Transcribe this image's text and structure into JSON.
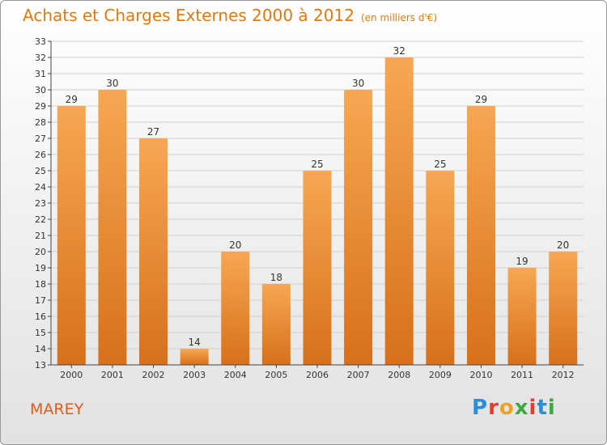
{
  "title": "Achats et Charges Externes 2000 à 2012",
  "subtitle": "(en milliers d'€)",
  "commune": "MAREY",
  "logo": {
    "text": "Proxiti",
    "colors": [
      "#2a8fd8",
      "#e0402a",
      "#f0a020",
      "#3aaa40",
      "#e0402a",
      "#2a8fd8",
      "#3aaa40"
    ]
  },
  "chart_data": {
    "type": "bar",
    "title": "Achats et Charges Externes 2000 à 2012",
    "subtitle": "(en milliers d'€)",
    "xlabel": "",
    "ylabel": "",
    "categories": [
      "2000",
      "2001",
      "2002",
      "2003",
      "2004",
      "2005",
      "2006",
      "2007",
      "2008",
      "2009",
      "2010",
      "2011",
      "2012"
    ],
    "values": [
      29,
      30,
      27,
      14,
      20,
      18,
      25,
      30,
      32,
      25,
      29,
      19,
      20
    ],
    "ylim": [
      13,
      33
    ],
    "yticks": [
      13,
      14,
      15,
      16,
      17,
      18,
      19,
      20,
      21,
      22,
      23,
      24,
      25,
      26,
      27,
      28,
      29,
      30,
      31,
      32,
      33
    ],
    "grid": true,
    "bar_color": "#f0922e",
    "data_labels": true
  }
}
